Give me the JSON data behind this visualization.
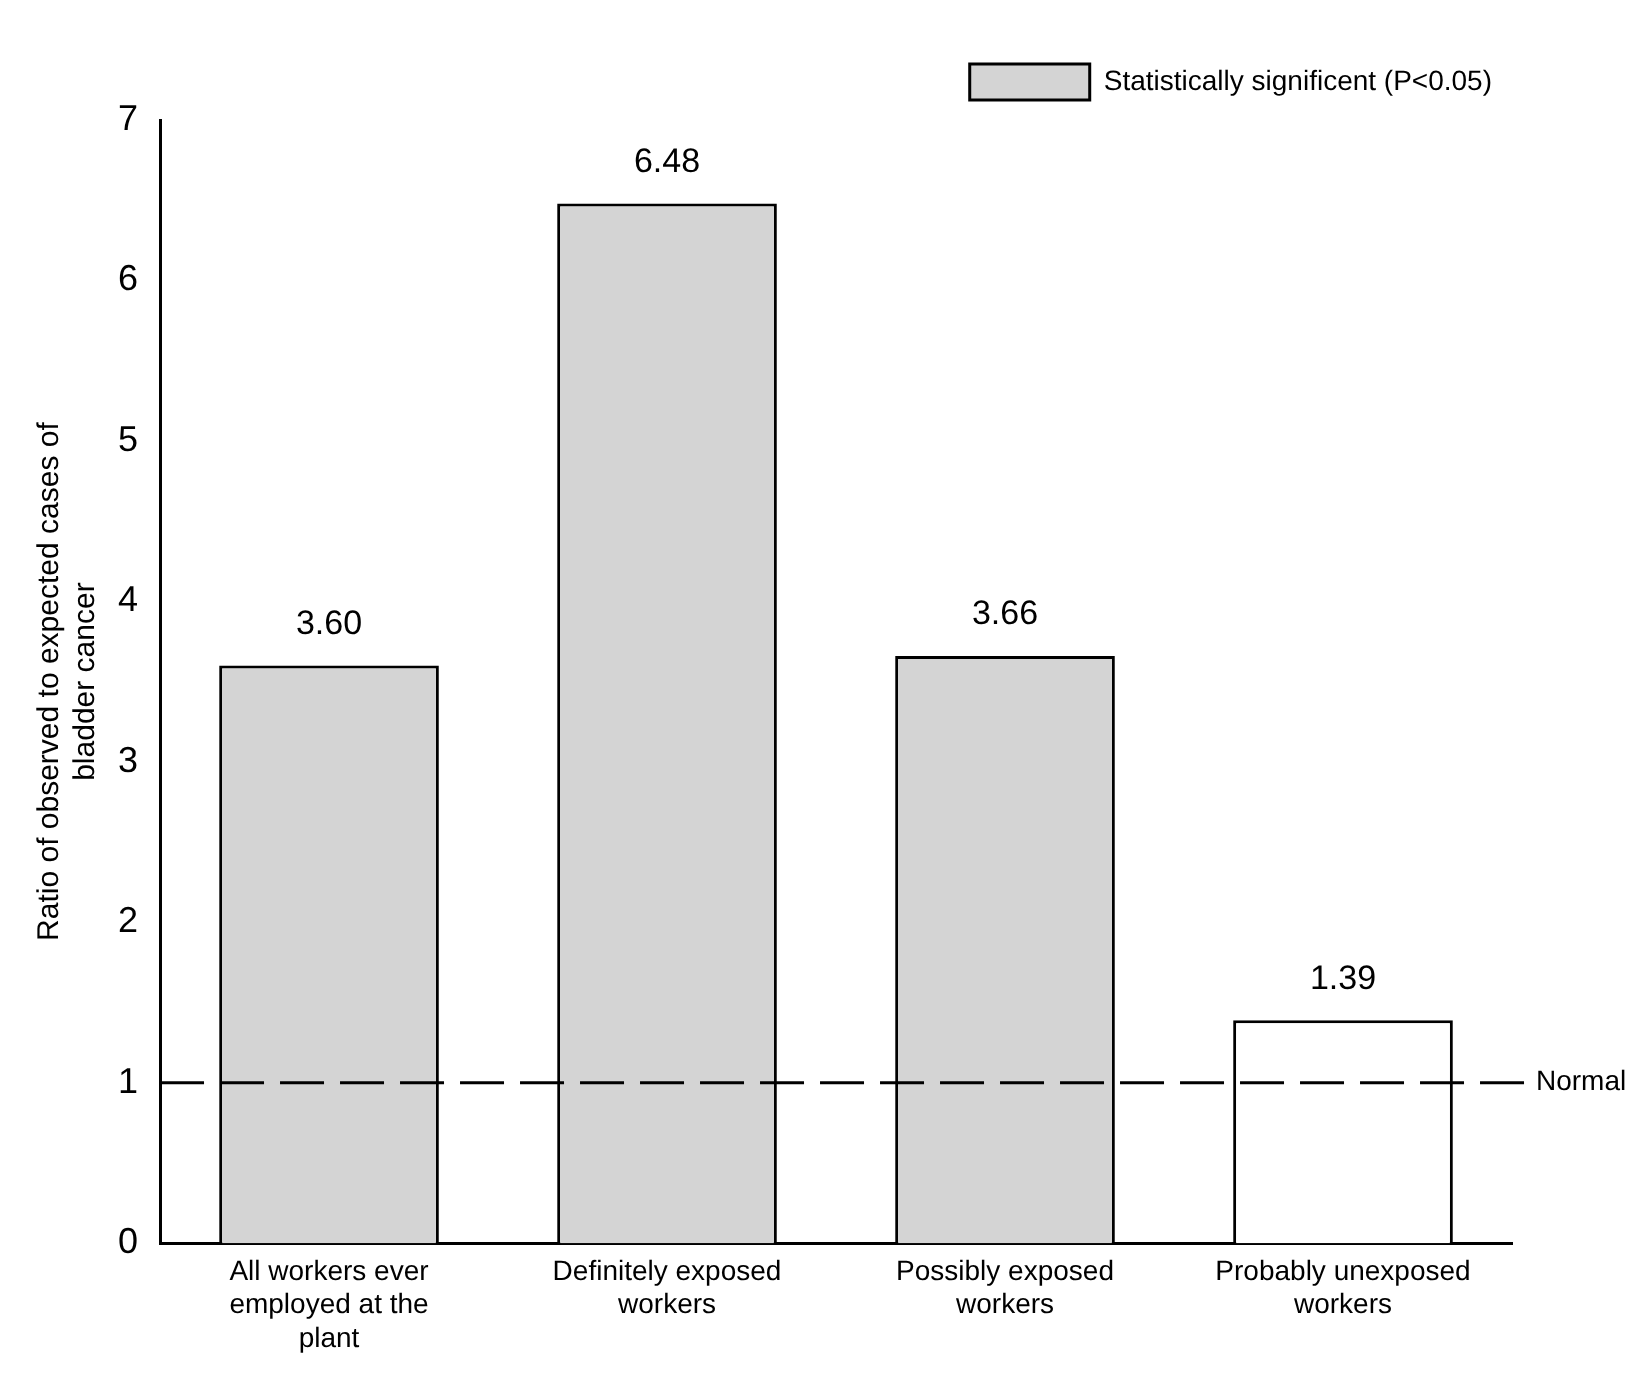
{
  "chart_data": {
    "type": "bar",
    "ylabel": "Ratio of observed to expected cases of bladder cancer",
    "categories": [
      "All workers ever employed at the plant",
      "Definitely exposed workers",
      "Possibly exposed workers",
      "Probably unexposed workers"
    ],
    "series": [
      {
        "name": "Statistically significent (P<0.05)",
        "colors": [
          "#d4d4d4",
          "#d4d4d4",
          "#d4d4d4",
          "#ffffff"
        ],
        "values": [
          3.6,
          6.48,
          3.66,
          1.39
        ],
        "value_labels": [
          "3.60",
          "6.48",
          "3.66",
          "1.39"
        ]
      }
    ],
    "ylim": [
      0,
      7
    ],
    "yticks": [
      0,
      1,
      2,
      3,
      4,
      5,
      6,
      7
    ],
    "grid": false,
    "legend": "top right",
    "ref_lines": [
      {
        "axis": "y",
        "value": 1,
        "label": "Normal",
        "color": "#000000",
        "line_style": "dashed"
      }
    ]
  }
}
